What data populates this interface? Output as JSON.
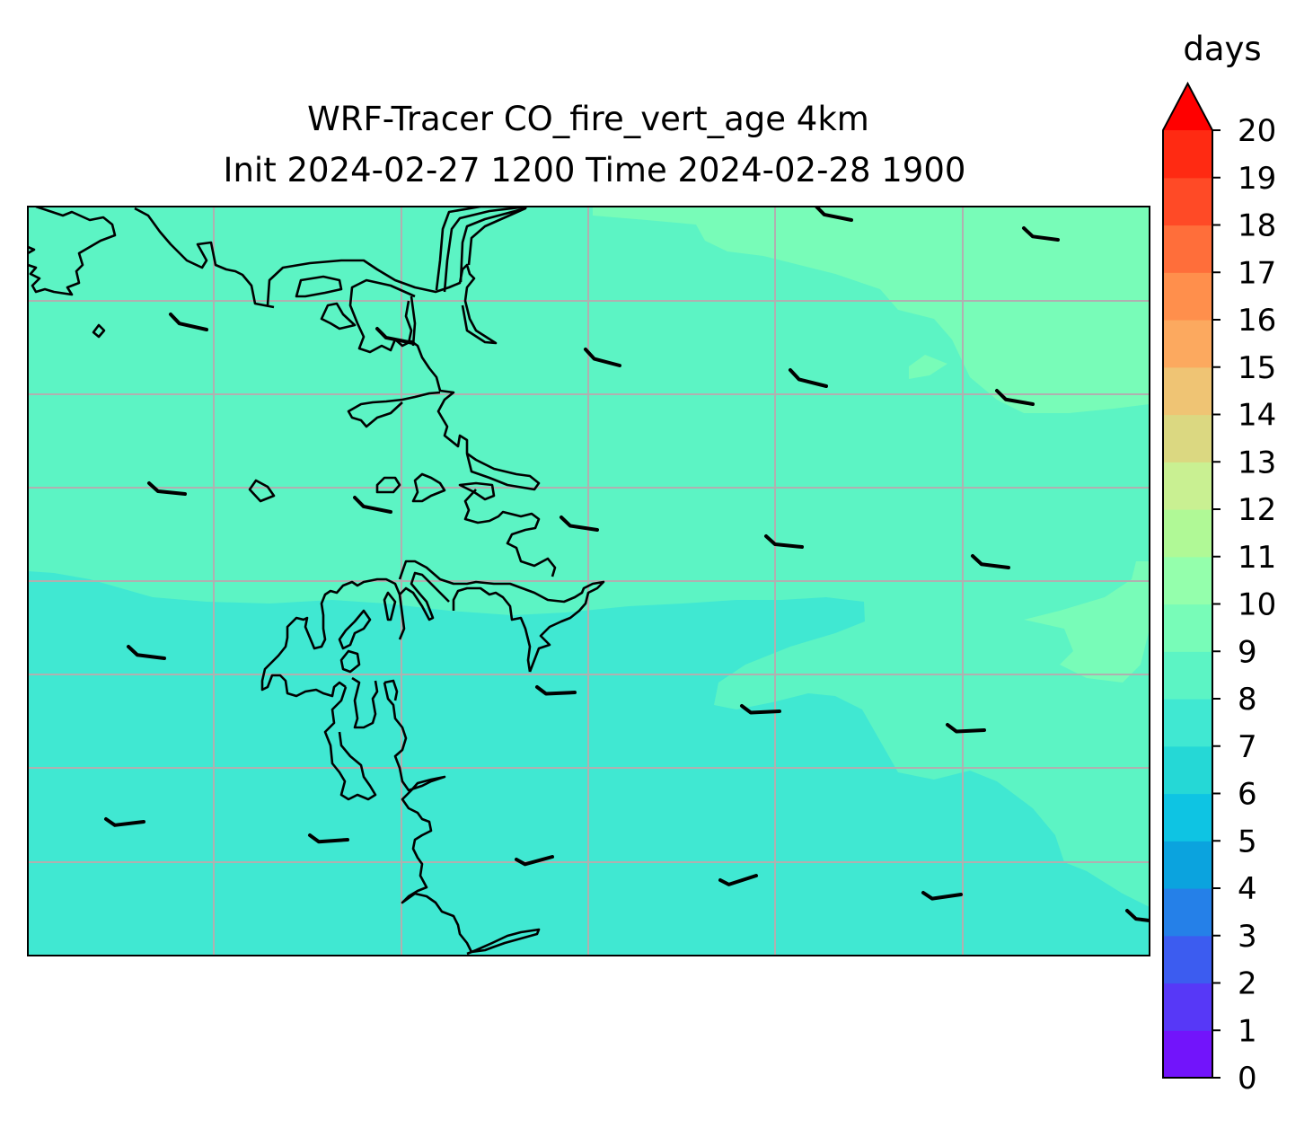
{
  "title_line1": "WRF-Tracer CO_fire_vert_age 4km",
  "title_line2": "Init 2024-02-27 1200 Time 2024-02-28 1900",
  "colorbar": {
    "label": "days",
    "levels": [
      "0",
      "1",
      "2",
      "3",
      "4",
      "5",
      "6",
      "7",
      "8",
      "9",
      "10",
      "11",
      "12",
      "13",
      "14",
      "15",
      "16",
      "17",
      "18",
      "19",
      "20"
    ],
    "extend": "max",
    "colors": [
      "#7214fb",
      "#5738f7",
      "#3c5cf0",
      "#2580e8",
      "#0ba3de",
      "#0ec4e3",
      "#25d8d6",
      "#40e8d2",
      "#5cf4c4",
      "#78fcb8",
      "#94ffac",
      "#b0f996",
      "#c9f092",
      "#dbd881",
      "#efc474",
      "#fca95f",
      "#ff8f4c",
      "#ff6e3a",
      "#ff4a26",
      "#ff2a12"
    ],
    "extend_color": "#ff0000"
  },
  "map": {
    "field_colors": {
      "south": "#40e8d2",
      "middle": "#5cf4c4",
      "north": "#78fcb8"
    },
    "gridlines": true,
    "wind_barbs": "black, ~5 kt from the west-southwest"
  }
}
